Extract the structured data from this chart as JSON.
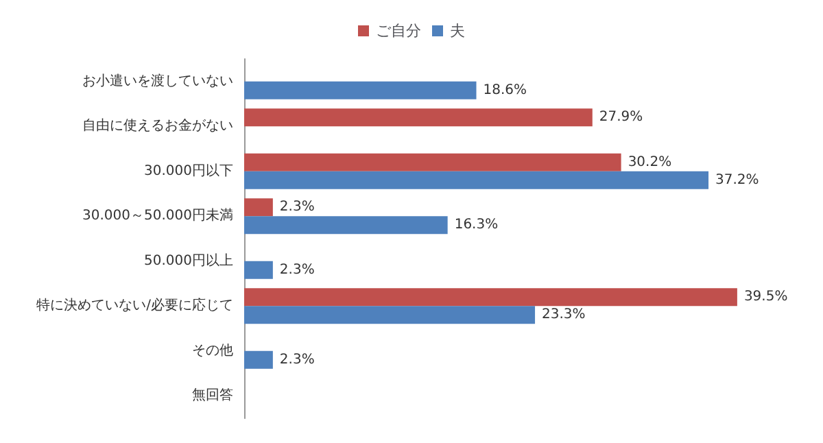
{
  "chart_data": {
    "type": "bar",
    "orientation": "horizontal",
    "categories": [
      "お小遣いを渡していない",
      "自由に使えるお金がない",
      "30.000円以下",
      "30.000～50.000円未満",
      "50.000円以上",
      "特に決めていない/必要に応じて",
      "その他",
      "無回答"
    ],
    "series": [
      {
        "name": "ご自分",
        "color": "#c0504d",
        "values": [
          null,
          27.9,
          30.2,
          2.3,
          null,
          39.5,
          null,
          null
        ],
        "value_labels": [
          null,
          "27.9%",
          "30.2%",
          "2.3%",
          null,
          "39.5%",
          null,
          null
        ]
      },
      {
        "name": "夫",
        "color": "#4f81bd",
        "values": [
          18.6,
          null,
          37.2,
          16.3,
          2.3,
          23.3,
          2.3,
          null
        ],
        "value_labels": [
          "18.6%",
          null,
          "37.2%",
          "16.3%",
          "2.3%",
          "23.3%",
          "2.3%",
          null
        ]
      }
    ],
    "tick_labels": "y",
    "grid": false,
    "legend": "top"
  }
}
